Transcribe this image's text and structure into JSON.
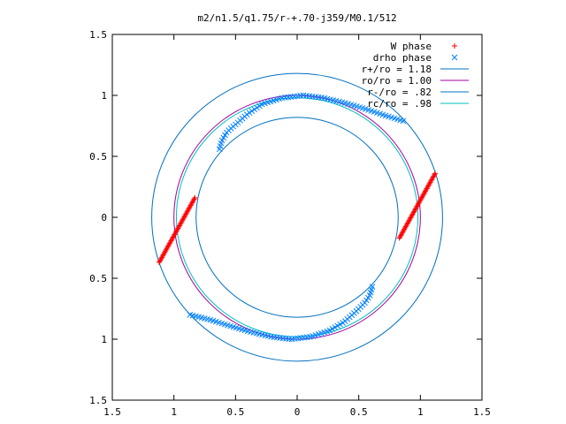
{
  "chart_data": {
    "type": "scatter",
    "title": "m2/n1.5/q1.75/r-+.70-j359/M0.1/512",
    "xlabel": "",
    "ylabel": "",
    "xlim": [
      -1.5,
      1.5
    ],
    "ylim": [
      -1.5,
      1.5
    ],
    "x_tick_values": [
      -1.5,
      -1,
      -0.5,
      0,
      0.5,
      1,
      1.5
    ],
    "x_tick_labels": [
      "1.5",
      "1",
      "0.5",
      "0",
      "0.5",
      "1",
      "1.5"
    ],
    "y_tick_values": [
      1.5,
      1,
      0.5,
      0,
      -0.5,
      -1,
      -1.5
    ],
    "y_tick_labels": [
      "1.5",
      "1",
      "0.5",
      "0",
      "0.5",
      "1",
      "1.5"
    ],
    "grid": false,
    "legend_position": "top-right",
    "legend": [
      {
        "label": "W phase",
        "marker": "+",
        "color": "#ff0000"
      },
      {
        "label": "drho phase",
        "marker": "x",
        "color": "#0080ff"
      },
      {
        "label": "r+/ro = 1.18",
        "marker": "line",
        "color": "#0070c0"
      },
      {
        "label": "ro/ro = 1.00",
        "marker": "line",
        "color": "#a000a0"
      },
      {
        "label": "r-/ro = .82",
        "marker": "line",
        "color": "#0070c0"
      },
      {
        "label": "rc/ro = .98",
        "marker": "line",
        "color": "#00c0c0"
      }
    ],
    "circles": [
      {
        "name": "r+/ro = 1.18",
        "radius": 1.18,
        "color": "#0070c0"
      },
      {
        "name": "ro/ro = 1.00",
        "radius": 1.0,
        "color": "#a000a0"
      },
      {
        "name": "r-/ro = .82",
        "radius": 0.82,
        "color": "#0070c0"
      },
      {
        "name": "rc/ro = .98",
        "radius": 0.98,
        "color": "#00c0c0"
      }
    ],
    "series": [
      {
        "name": "W phase",
        "marker": "+",
        "color": "#ff0000",
        "segments": [
          {
            "x_start": -1.12,
            "y_start": -0.37,
            "x_end": -0.83,
            "y_end": 0.16,
            "points": 52
          },
          {
            "x_start": 0.83,
            "y_start": -0.17,
            "x_end": 1.12,
            "y_end": 0.36,
            "points": 52
          }
        ]
      },
      {
        "name": "drho phase",
        "marker": "x",
        "color": "#0080ff",
        "segments": [
          {
            "x_start": -0.63,
            "y_start": 0.56,
            "x_end": 0.86,
            "y_end": 0.79,
            "points": 70,
            "path": [
              [
                -0.63,
                0.56
              ],
              [
                -0.61,
                0.63
              ],
              [
                -0.57,
                0.7
              ],
              [
                -0.49,
                0.77
              ],
              [
                -0.4,
                0.85
              ],
              [
                -0.28,
                0.93
              ],
              [
                -0.12,
                0.98
              ],
              [
                0.05,
                1.0
              ],
              [
                0.21,
                0.98
              ],
              [
                0.38,
                0.94
              ],
              [
                0.55,
                0.89
              ],
              [
                0.7,
                0.84
              ],
              [
                0.86,
                0.79
              ]
            ]
          },
          {
            "x_start": 0.61,
            "y_start": -0.57,
            "x_end": -0.87,
            "y_end": -0.8,
            "points": 70,
            "path": [
              [
                0.61,
                -0.57
              ],
              [
                0.59,
                -0.64
              ],
              [
                0.55,
                -0.7
              ],
              [
                0.48,
                -0.77
              ],
              [
                0.38,
                -0.86
              ],
              [
                0.26,
                -0.93
              ],
              [
                0.11,
                -0.98
              ],
              [
                -0.05,
                -1.0
              ],
              [
                -0.21,
                -0.98
              ],
              [
                -0.38,
                -0.94
              ],
              [
                -0.55,
                -0.89
              ],
              [
                -0.71,
                -0.84
              ],
              [
                -0.87,
                -0.8
              ]
            ]
          }
        ]
      }
    ]
  }
}
